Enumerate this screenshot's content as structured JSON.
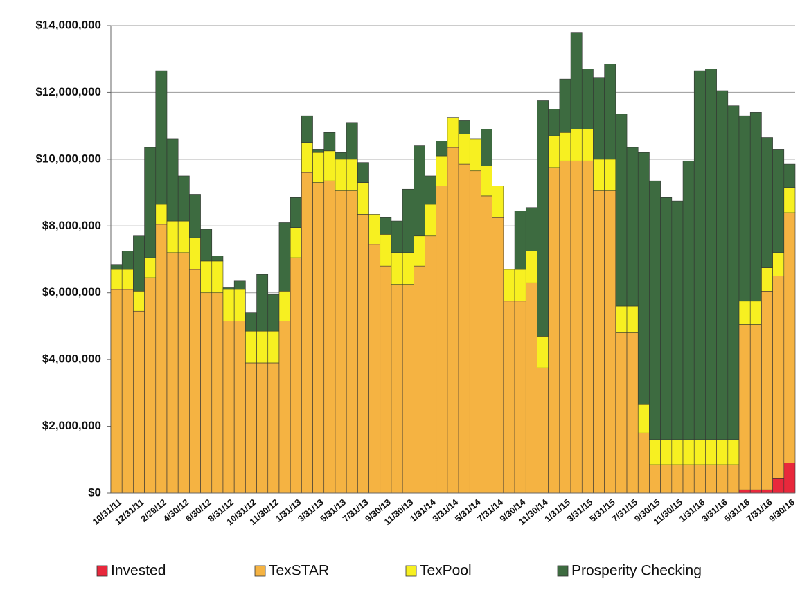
{
  "chart_data": {
    "type": "stacked-bar",
    "categories": [
      "10/31/11",
      null,
      "12/31/11",
      null,
      "2/29/12",
      null,
      "4/30/12",
      null,
      "6/30/12",
      null,
      "8/31/12",
      null,
      "10/31/12",
      null,
      "11/30/12",
      null,
      "1/31/13",
      null,
      "3/31/13",
      null,
      "5/31/13",
      null,
      "7/31/13",
      null,
      "9/30/13",
      null,
      "11/30/13",
      null,
      "1/31/14",
      null,
      "3/31/14",
      null,
      "5/31/14",
      null,
      "7/31/14",
      null,
      "9/30/14",
      null,
      "11/30/14",
      null,
      "1/31/15",
      null,
      "3/31/15",
      null,
      "5/31/15",
      null,
      "7/31/15",
      null,
      "9/30/15",
      null,
      "11/30/15",
      null,
      "1/31/16",
      null,
      "3/31/16",
      null,
      "5/31/16",
      null,
      "7/31/16",
      null,
      "9/30/16"
    ],
    "series": [
      {
        "name": "Invested",
        "color": "#e8283c",
        "values": [
          0,
          0,
          0,
          0,
          0,
          0,
          0,
          0,
          0,
          0,
          0,
          0,
          0,
          0,
          0,
          0,
          0,
          0,
          0,
          0,
          0,
          0,
          0,
          0,
          0,
          0,
          0,
          0,
          0,
          0,
          0,
          0,
          0,
          0,
          0,
          0,
          0,
          0,
          0,
          0,
          0,
          0,
          0,
          0,
          0,
          0,
          0,
          0,
          0,
          0,
          0,
          0,
          0,
          0,
          0,
          0,
          100000,
          100000,
          100000,
          450000,
          900000
        ]
      },
      {
        "name": "TexSTAR",
        "color": "#f5b342",
        "values": [
          6100000,
          6100000,
          5450000,
          6450000,
          8050000,
          7200000,
          7200000,
          6700000,
          6000000,
          6000000,
          5150000,
          5150000,
          3900000,
          3900000,
          3900000,
          5150000,
          7050000,
          9600000,
          9300000,
          9350000,
          9050000,
          9050000,
          8350000,
          7450000,
          6800000,
          6250000,
          6250000,
          6800000,
          7700000,
          9200000,
          10350000,
          9850000,
          9650000,
          8900000,
          8250000,
          5750000,
          5750000,
          6300000,
          3750000,
          9750000,
          9950000,
          9950000,
          9950000,
          9050000,
          9050000,
          4800000,
          4800000,
          1800000,
          850000,
          850000,
          850000,
          850000,
          850000,
          850000,
          850000,
          850000,
          4950000,
          4950000,
          5950000,
          6050000,
          7500000
        ]
      },
      {
        "name": "TexPool",
        "color": "#f7f021",
        "values": [
          600000,
          600000,
          600000,
          600000,
          600000,
          950000,
          950000,
          950000,
          950000,
          950000,
          950000,
          950000,
          950000,
          950000,
          950000,
          900000,
          900000,
          900000,
          900000,
          900000,
          950000,
          950000,
          950000,
          900000,
          950000,
          950000,
          950000,
          900000,
          950000,
          900000,
          900000,
          900000,
          950000,
          900000,
          950000,
          950000,
          950000,
          950000,
          950000,
          950000,
          850000,
          950000,
          950000,
          950000,
          950000,
          800000,
          800000,
          850000,
          750000,
          750000,
          750000,
          750000,
          750000,
          750000,
          750000,
          750000,
          700000,
          700000,
          700000,
          700000,
          750000
        ]
      },
      {
        "name": "Prosperity Checking",
        "color": "#3d6b40",
        "values": [
          150000,
          550000,
          1650000,
          3300000,
          4000000,
          2450000,
          1350000,
          1300000,
          950000,
          150000,
          50000,
          250000,
          550000,
          1700000,
          1100000,
          2050000,
          900000,
          800000,
          100000,
          550000,
          200000,
          1100000,
          600000,
          0,
          500000,
          950000,
          1900000,
          2700000,
          850000,
          450000,
          0,
          400000,
          0,
          1100000,
          0,
          0,
          1750000,
          1300000,
          7050000,
          800000,
          1600000,
          2900000,
          1800000,
          2450000,
          2850000,
          5750000,
          4750000,
          7550000,
          7750000,
          7250000,
          7150000,
          8350000,
          11050000,
          11100000,
          10450000,
          10000000,
          5550000,
          5650000,
          3900000,
          3100000,
          700000
        ]
      }
    ],
    "ylim": [
      0,
      14000000
    ],
    "yticks": [
      {
        "value": 0,
        "label": "$0"
      },
      {
        "value": 2000000,
        "label": "$2,000,000"
      },
      {
        "value": 4000000,
        "label": "$4,000,000"
      },
      {
        "value": 6000000,
        "label": "$6,000,000"
      },
      {
        "value": 8000000,
        "label": "$8,000,000"
      },
      {
        "value": 10000000,
        "label": "$10,000,000"
      },
      {
        "value": 12000000,
        "label": "$12,000,000"
      },
      {
        "value": 14000000,
        "label": "$14,000,000"
      }
    ],
    "grid": true
  }
}
